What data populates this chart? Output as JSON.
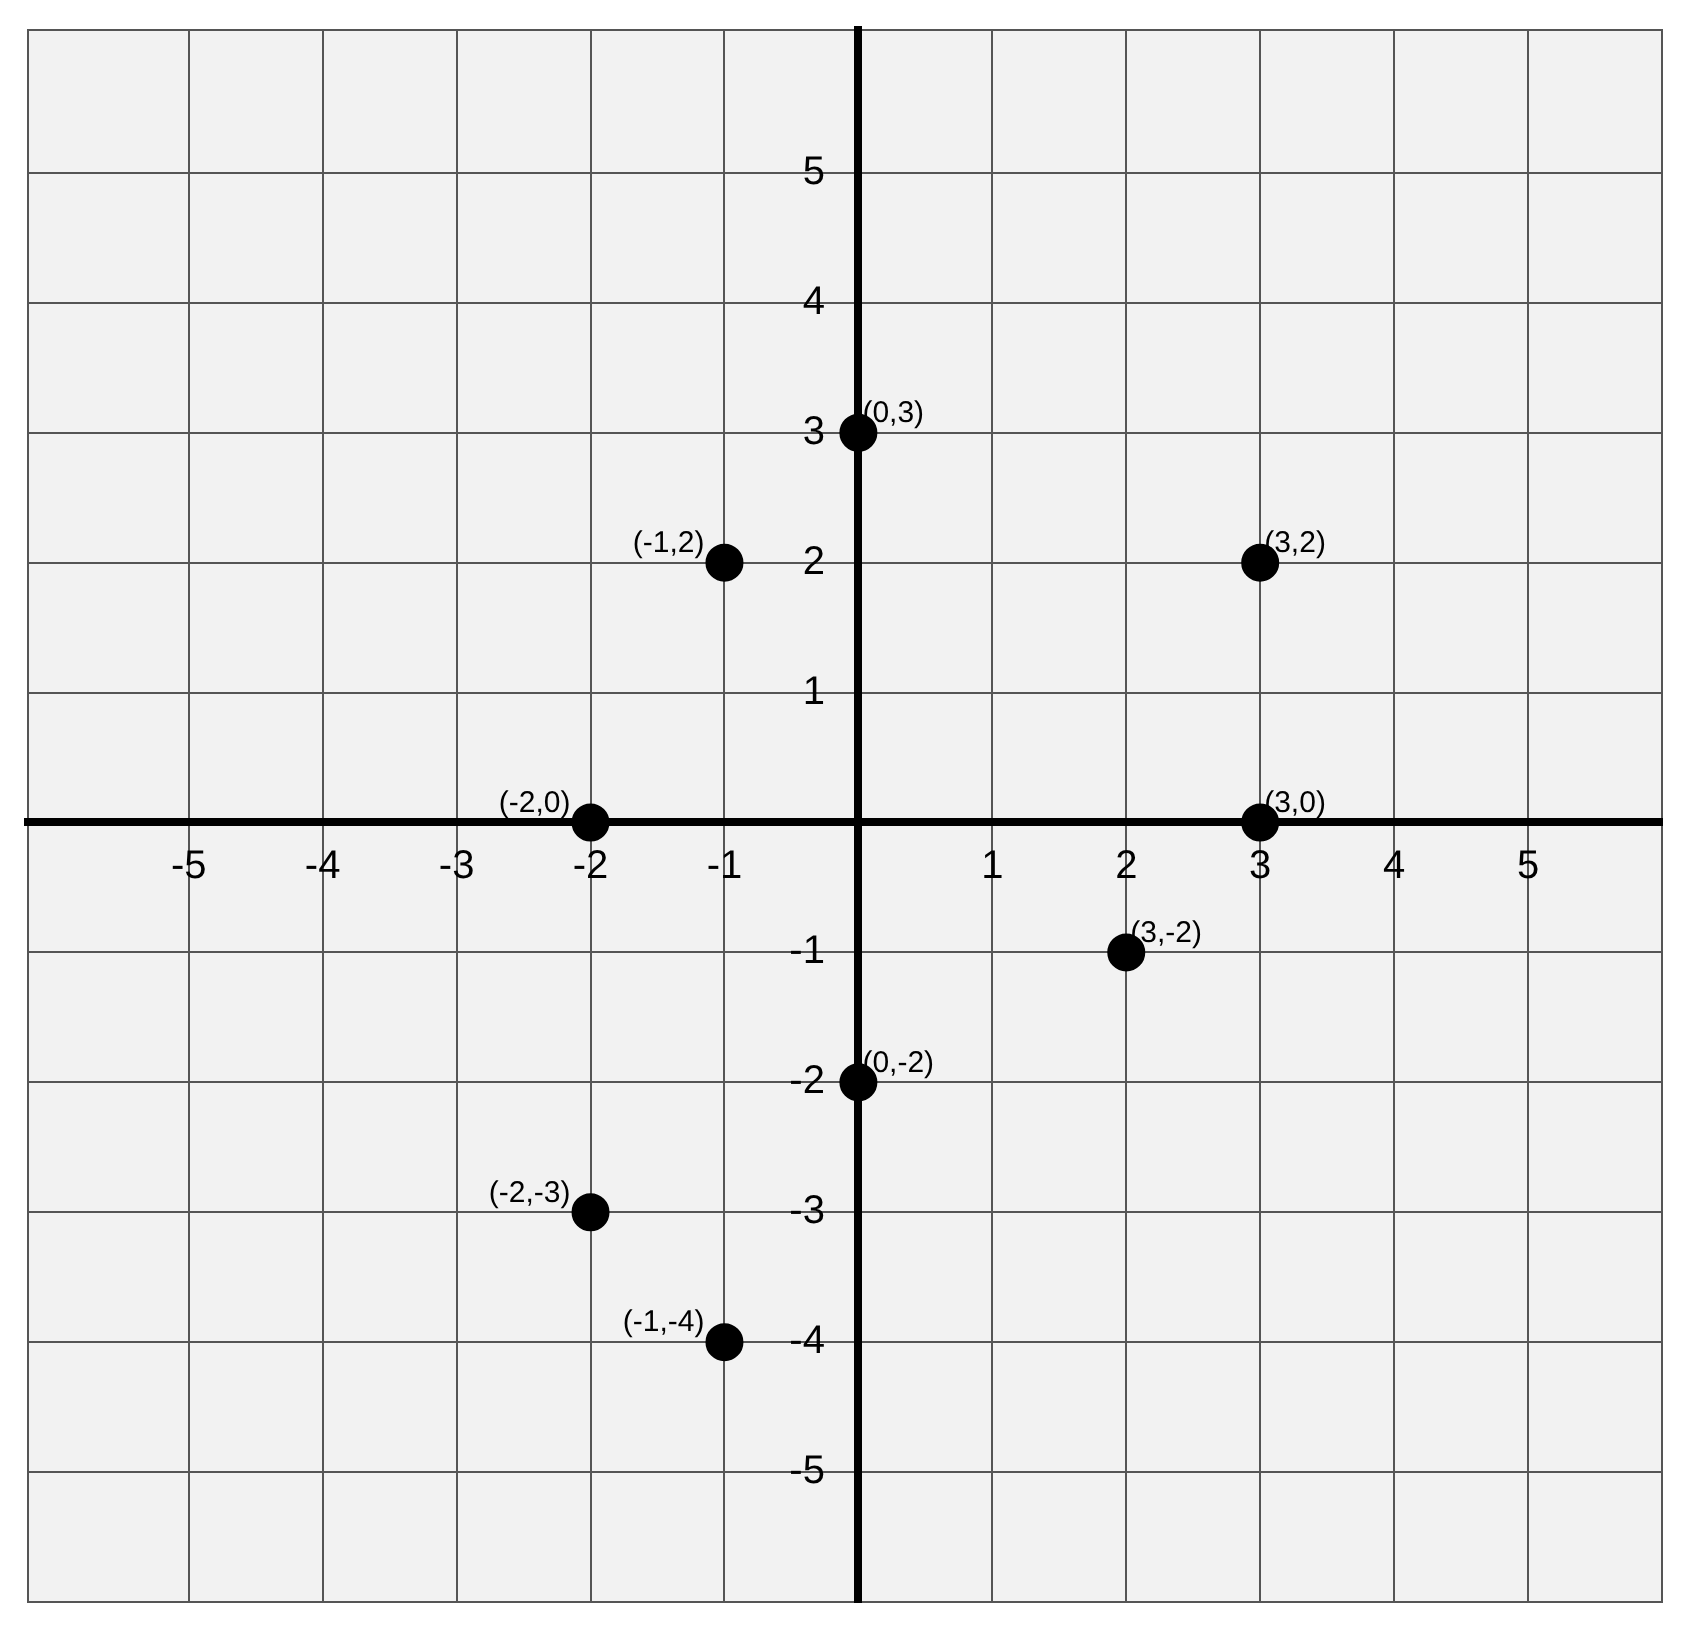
{
  "chart_data": {
    "type": "scatter",
    "x": [
      0,
      -1,
      3,
      -2,
      3,
      2,
      0,
      -2,
      -1
    ],
    "values": [
      3,
      2,
      2,
      0,
      0,
      -1,
      -2,
      -3,
      -4
    ],
    "color": "#000000",
    "marker": "circle",
    "grid": true,
    "xlim": [
      -6.2,
      6
    ],
    "ylim": [
      -6,
      6.1
    ],
    "xticks": [
      -5,
      -4,
      -3,
      -2,
      -1,
      {
        "value": 0,
        "label": null
      },
      1,
      2,
      3,
      4,
      5
    ],
    "yticks": [
      -5,
      -4,
      -3,
      -2,
      -1,
      {
        "value": 0,
        "label": null
      },
      1,
      2,
      3,
      4,
      5
    ],
    "annotations": [
      {
        "text": "(0,3)",
        "x": 0,
        "y": 3
      },
      {
        "text": "(-1,2)",
        "x": -1,
        "y": 2
      },
      {
        "text": "(3,2)",
        "x": 3,
        "y": 2
      },
      {
        "text": "(-2,0)",
        "x": -2,
        "y": 0
      },
      {
        "text": "(3,0)",
        "x": 3,
        "y": 0
      },
      {
        "text": "(3,-2)",
        "x": 2,
        "y": -1
      },
      {
        "text": "(0,-2)",
        "x": 0,
        "y": -2
      },
      {
        "text": "(-2,-3)",
        "x": -2,
        "y": -3
      },
      {
        "text": "(-1,-4)",
        "x": -1,
        "y": -4
      }
    ]
  }
}
